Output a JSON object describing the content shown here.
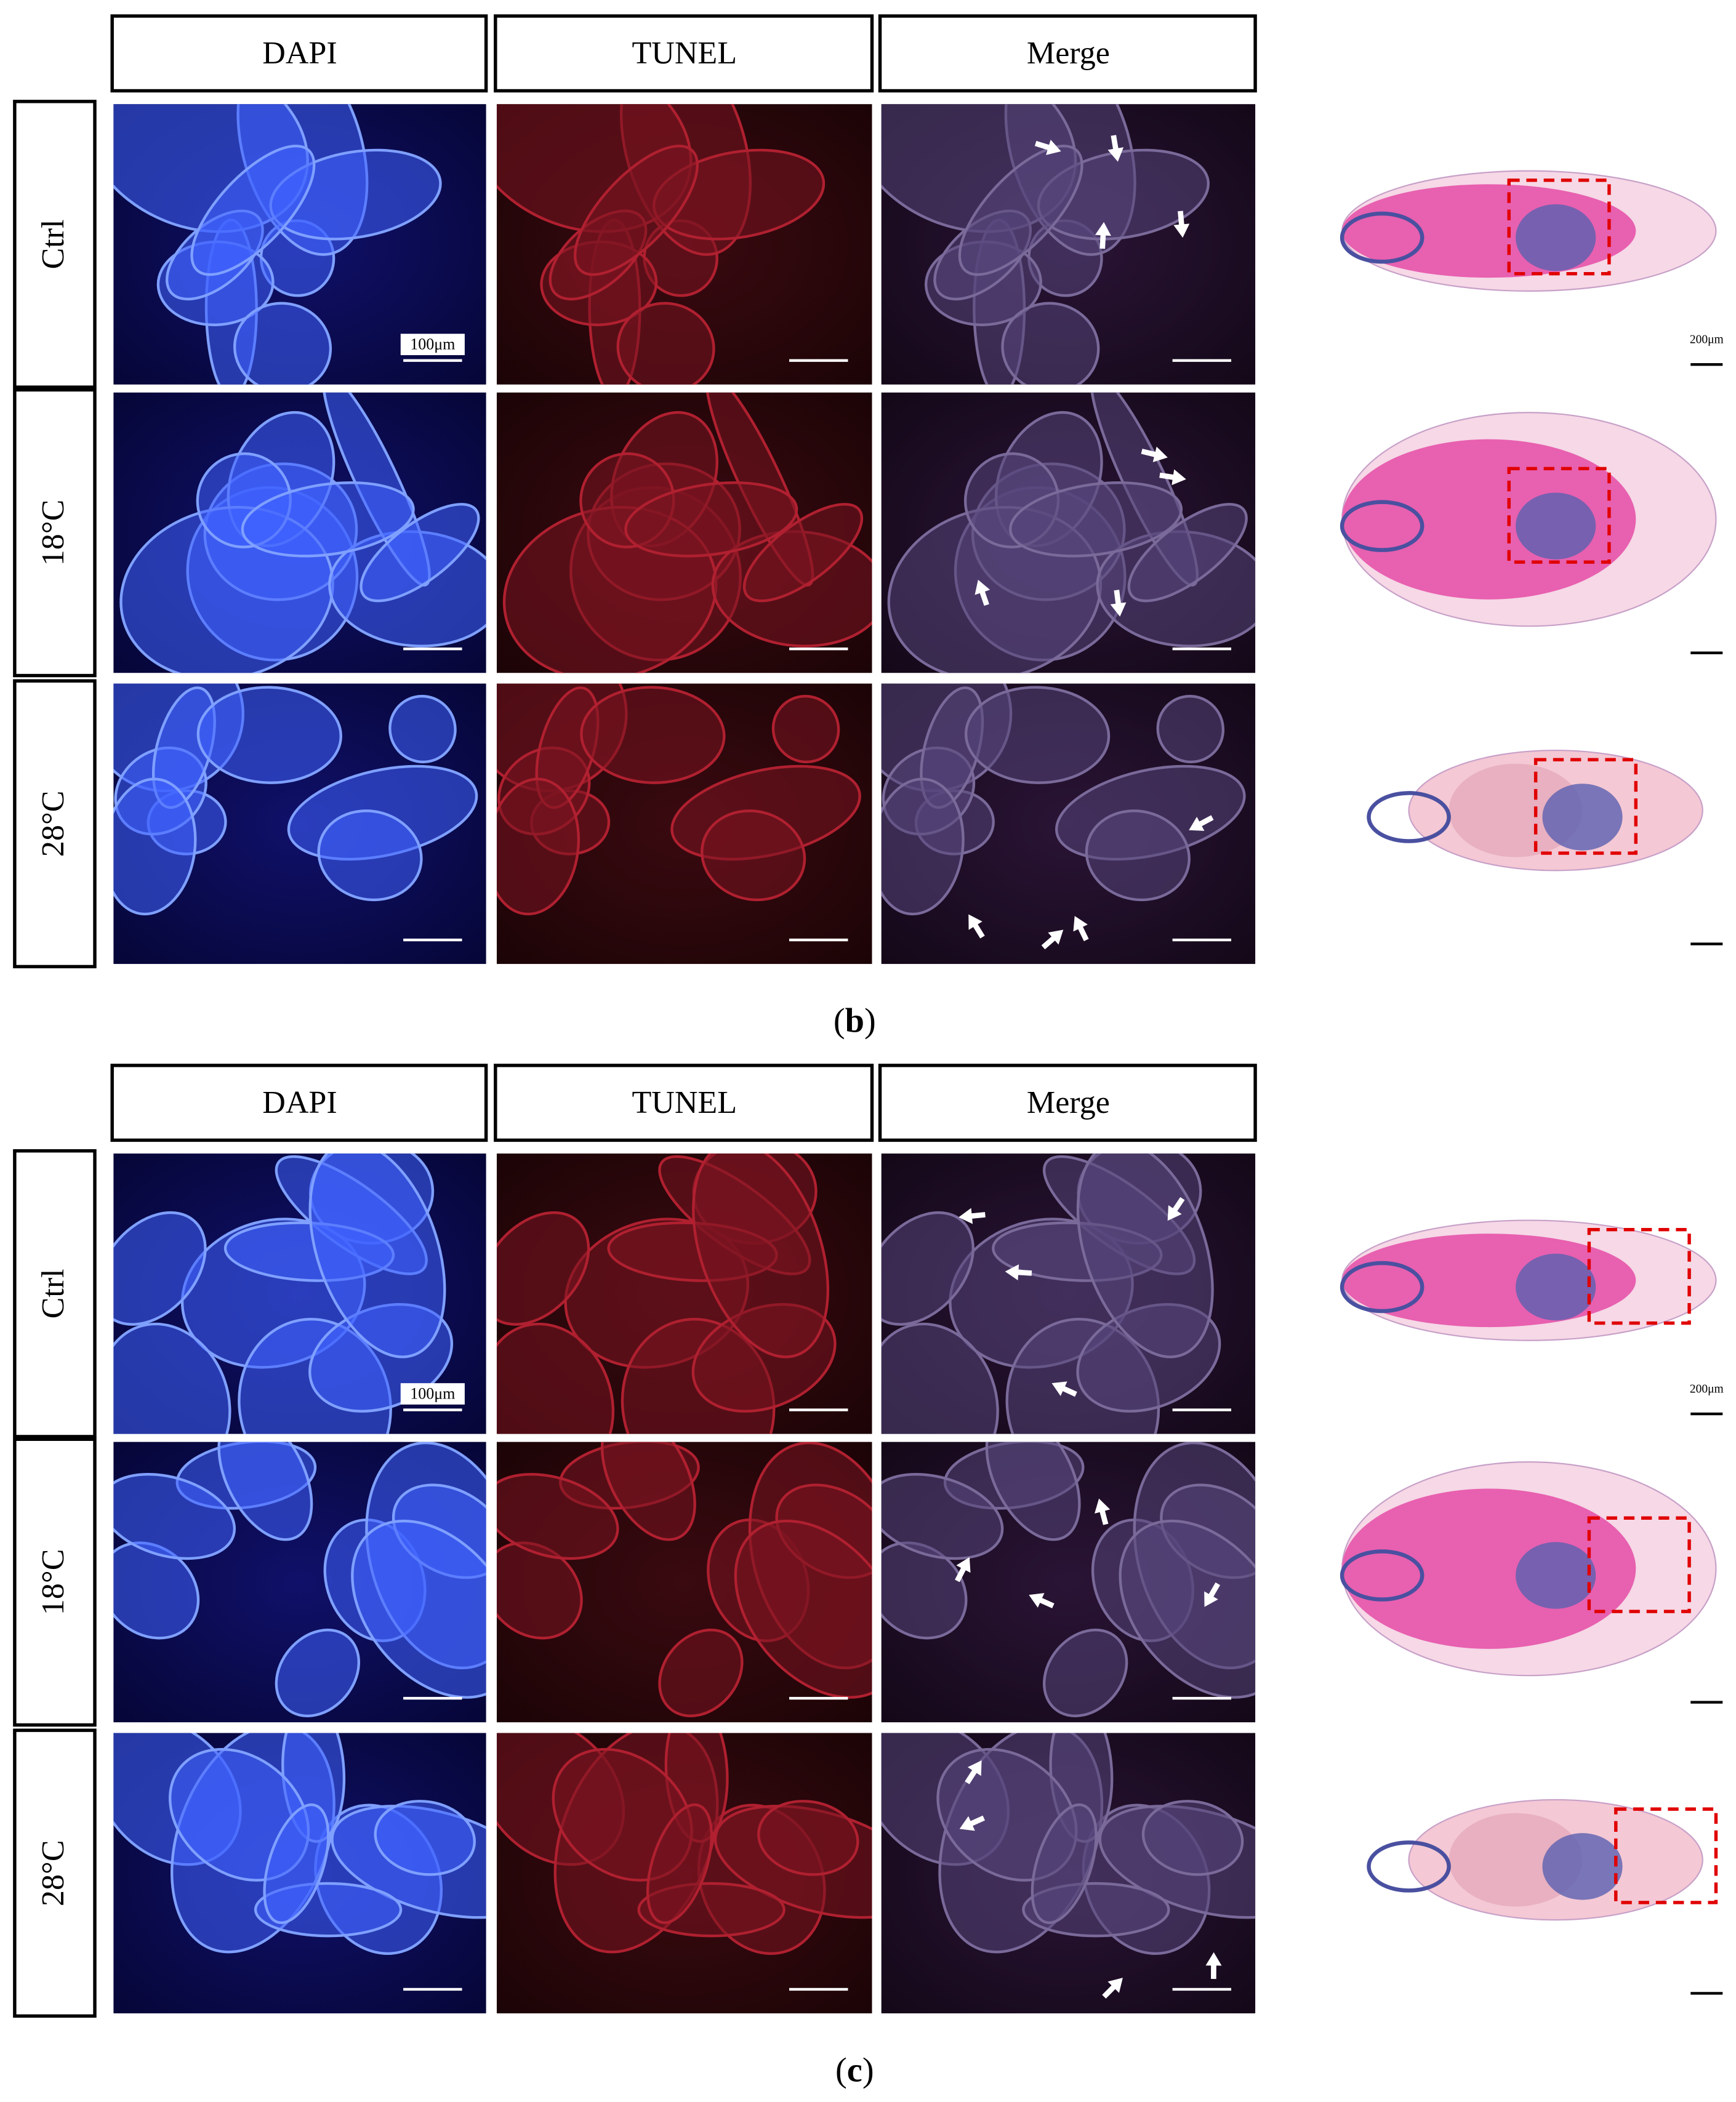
{
  "panels": [
    {
      "columns": [
        "DAPI",
        "TUNEL",
        "Merge"
      ],
      "rows": [
        "Ctrl",
        "18°C",
        "28°C"
      ],
      "scale_bar": "100μm",
      "overview_scale_bar": "200μm",
      "caption": {
        "open": "(",
        "letter": "b",
        "close": ")"
      }
    },
    {
      "columns": [
        "DAPI",
        "TUNEL",
        "Merge"
      ],
      "rows": [
        "Ctrl",
        "18°C",
        "28°C"
      ],
      "scale_bar": "100μm",
      "overview_scale_bar": "200μm",
      "caption": {
        "open": "(",
        "letter": "c",
        "close": ")"
      }
    }
  ]
}
